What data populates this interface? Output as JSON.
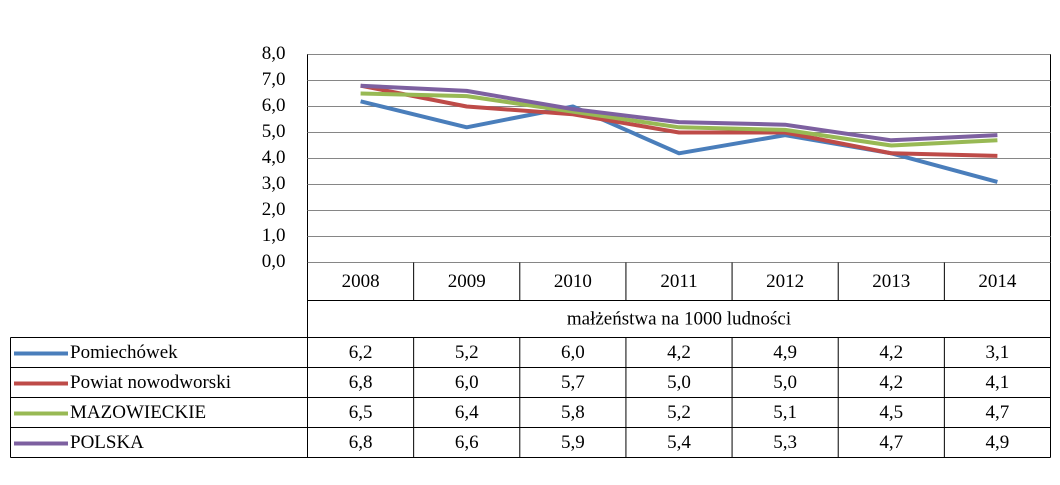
{
  "chart_data": {
    "type": "line",
    "xlabel": "małżeństwa na 1000 ludności",
    "categories": [
      "2008",
      "2009",
      "2010",
      "2011",
      "2012",
      "2013",
      "2014"
    ],
    "series": [
      {
        "name": "Pomiechówek",
        "color": "#4a7ebb",
        "values": [
          6.2,
          5.2,
          6.0,
          4.2,
          4.9,
          4.2,
          3.1
        ],
        "value_labels": [
          "6,2",
          "5,2",
          "6,0",
          "4,2",
          "4,9",
          "4,2",
          "3,1"
        ]
      },
      {
        "name": "Powiat nowodworski",
        "color": "#be4b48",
        "values": [
          6.8,
          6.0,
          5.7,
          5.0,
          5.0,
          4.2,
          4.1
        ],
        "value_labels": [
          "6,8",
          "6,0",
          "5,7",
          "5,0",
          "5,0",
          "4,2",
          "4,1"
        ]
      },
      {
        "name": "MAZOWIECKIE",
        "color": "#98b954",
        "values": [
          6.5,
          6.4,
          5.8,
          5.2,
          5.1,
          4.5,
          4.7
        ],
        "value_labels": [
          "6,5",
          "6,4",
          "5,8",
          "5,2",
          "5,1",
          "4,5",
          "4,7"
        ]
      },
      {
        "name": "POLSKA",
        "color": "#7d60a0",
        "values": [
          6.8,
          6.6,
          5.9,
          5.4,
          5.3,
          4.7,
          4.9
        ],
        "value_labels": [
          "6,8",
          "6,6",
          "5,9",
          "5,4",
          "5,3",
          "4,7",
          "4,9"
        ]
      }
    ],
    "ylim": [
      0,
      8
    ],
    "yticks": [
      {
        "value": 0,
        "label": "0,0"
      },
      {
        "value": 1,
        "label": "1,0"
      },
      {
        "value": 2,
        "label": "2,0"
      },
      {
        "value": 3,
        "label": "3,0"
      },
      {
        "value": 4,
        "label": "4,0"
      },
      {
        "value": 5,
        "label": "5,0"
      },
      {
        "value": 6,
        "label": "6,0"
      },
      {
        "value": 7,
        "label": "7,0"
      },
      {
        "value": 8,
        "label": "8,0"
      }
    ],
    "grid": true
  }
}
